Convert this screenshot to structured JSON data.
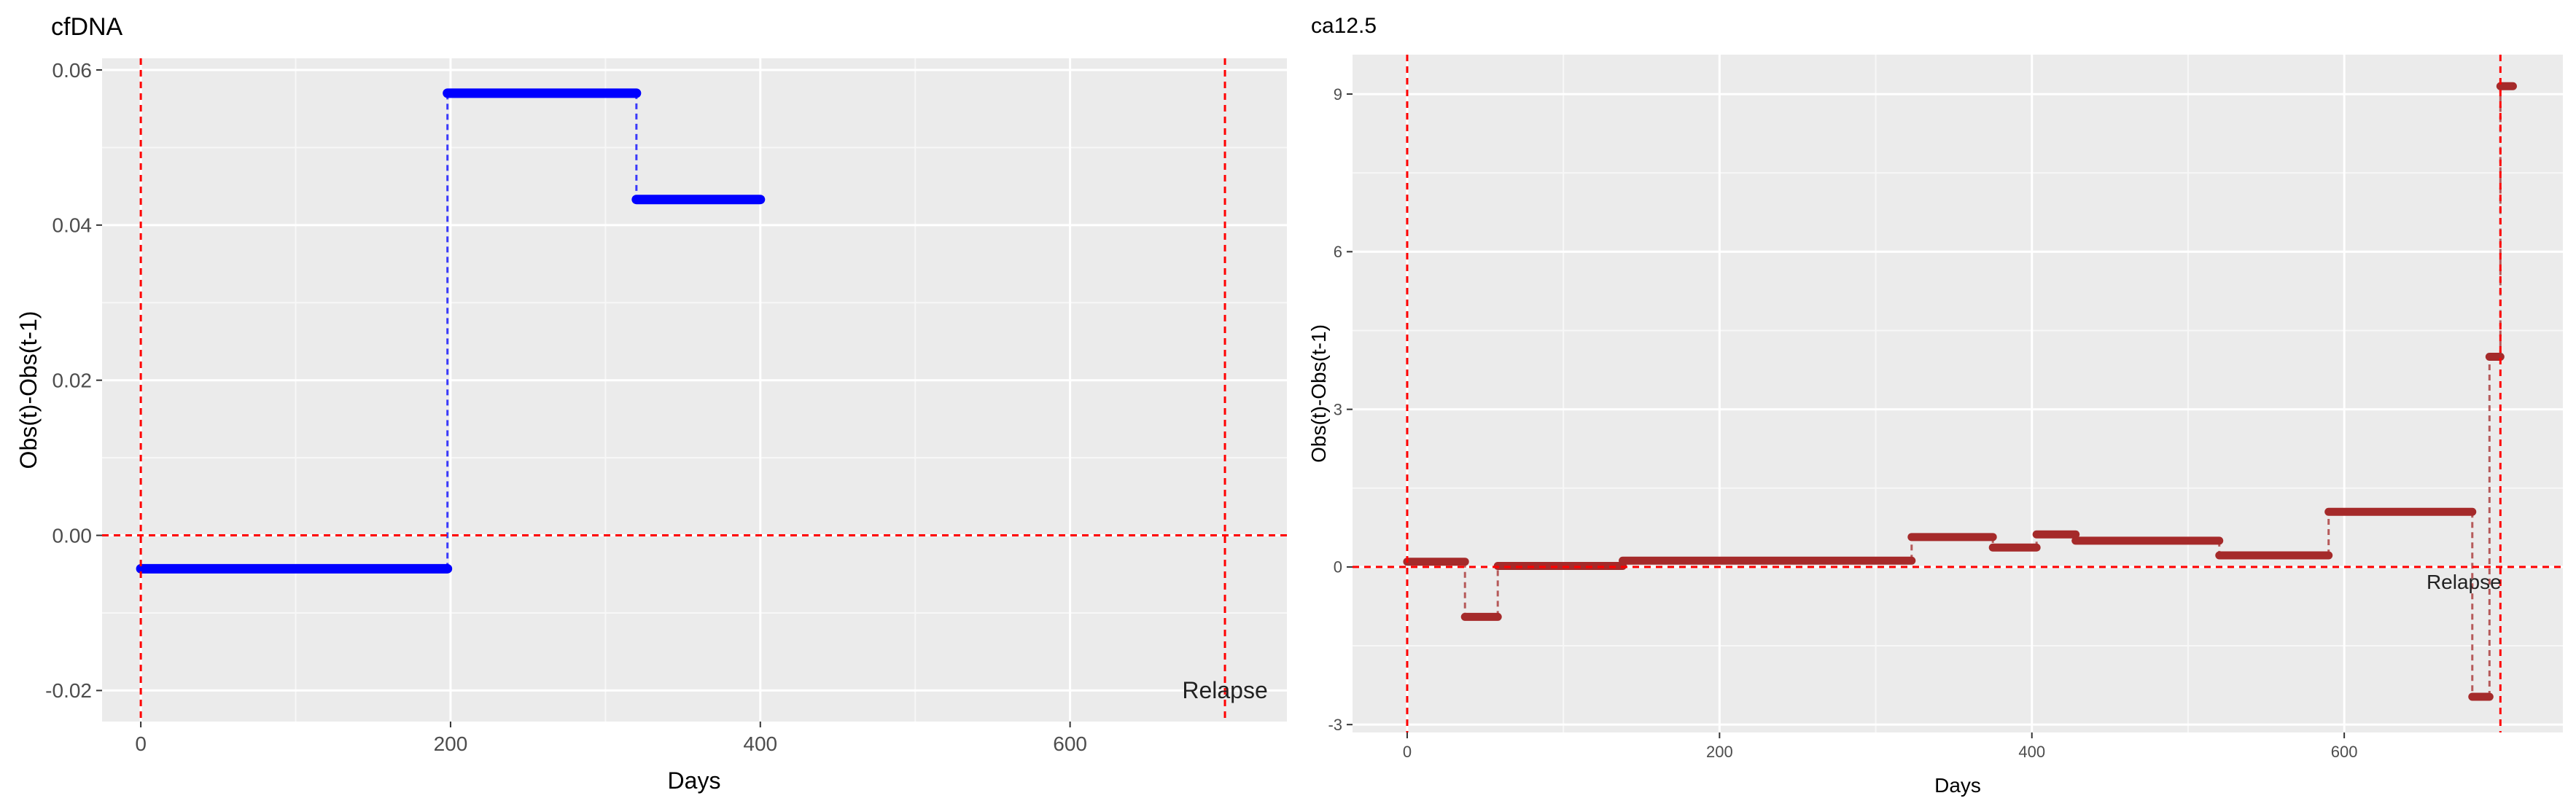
{
  "chart_data": [
    {
      "type": "line",
      "title": "cfDNA",
      "xlabel": "Days",
      "ylabel": "Obs(t)-Obs(t-1)",
      "xlim": [
        -25,
        740
      ],
      "ylim": [
        -0.024,
        0.0615
      ],
      "x_ticks": [
        0,
        200,
        400,
        600
      ],
      "x_tick_labels": [
        "0",
        "200",
        "400",
        "600"
      ],
      "y_ticks": [
        -0.02,
        0,
        0.02,
        0.04,
        0.06
      ],
      "y_tick_labels": [
        "-0.02",
        "0.00",
        "0.02",
        "0.04",
        "0.06"
      ],
      "grid": true,
      "series_color": "#0000ff",
      "reference_color": "#ff0000",
      "steps": [
        {
          "x_start": 0,
          "x_end": 198,
          "y": -0.0043
        },
        {
          "x_start": 198,
          "x_end": 320,
          "y": 0.057
        },
        {
          "x_start": 320,
          "x_end": 400,
          "y": 0.0433
        }
      ],
      "hline_y": 0,
      "vlines_x": [
        0,
        700
      ],
      "annotation": {
        "text": "Relapse",
        "x": 700,
        "y": -0.021
      }
    },
    {
      "type": "line",
      "title": "ca12.5",
      "xlabel": "Days",
      "ylabel": "Obs(t)-Obs(t-1)",
      "xlim": [
        -35,
        740
      ],
      "ylim": [
        -3.15,
        9.75
      ],
      "x_ticks": [
        0,
        200,
        400,
        600
      ],
      "x_tick_labels": [
        "0",
        "200",
        "400",
        "600"
      ],
      "y_ticks": [
        -3,
        0,
        3,
        6,
        9
      ],
      "y_tick_labels": [
        "-3",
        "0",
        "3",
        "6",
        "9"
      ],
      "grid": true,
      "series_color": "#a52a2a",
      "reference_color": "#ff0000",
      "steps": [
        {
          "x_start": 0,
          "x_end": 37,
          "y": 0.1
        },
        {
          "x_start": 37,
          "x_end": 58,
          "y": -0.95
        },
        {
          "x_start": 58,
          "x_end": 138,
          "y": 0.02
        },
        {
          "x_start": 138,
          "x_end": 323,
          "y": 0.12
        },
        {
          "x_start": 323,
          "x_end": 375,
          "y": 0.57
        },
        {
          "x_start": 375,
          "x_end": 403,
          "y": 0.37
        },
        {
          "x_start": 403,
          "x_end": 428,
          "y": 0.62
        },
        {
          "x_start": 428,
          "x_end": 520,
          "y": 0.5
        },
        {
          "x_start": 520,
          "x_end": 590,
          "y": 0.22
        },
        {
          "x_start": 590,
          "x_end": 682,
          "y": 1.05
        },
        {
          "x_start": 682,
          "x_end": 693,
          "y": -2.47
        },
        {
          "x_start": 693,
          "x_end": 700,
          "y": 4.0
        },
        {
          "x_start": 700,
          "x_end": 708,
          "y": 9.15
        }
      ],
      "hline_y": 0,
      "vlines_x": [
        0,
        700
      ],
      "annotation": {
        "text": "Relapse",
        "x": 700,
        "y": 0
      }
    }
  ]
}
